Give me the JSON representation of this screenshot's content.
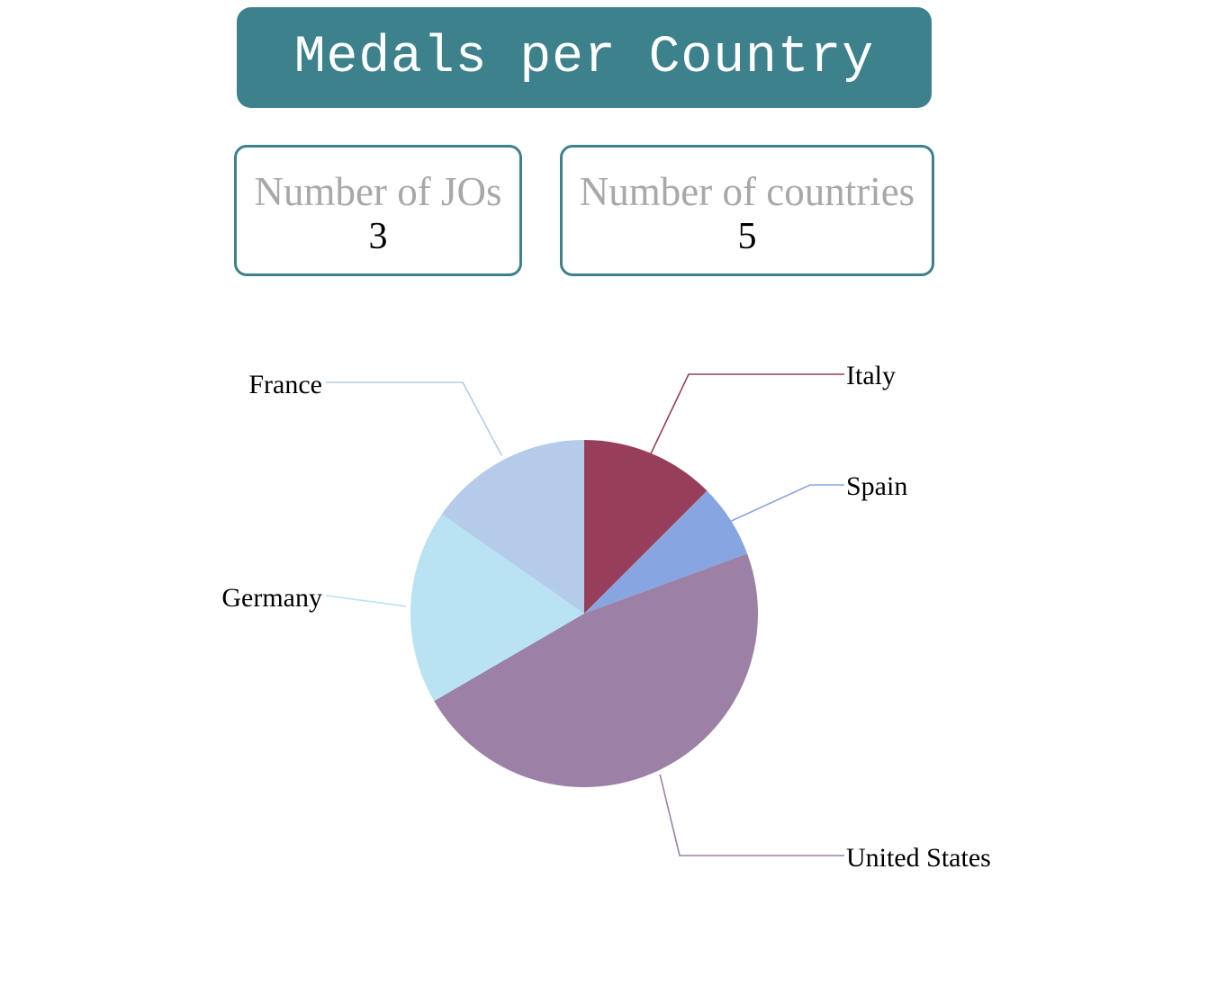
{
  "title": "Medals per Country",
  "stats": {
    "jos": {
      "label": "Number of JOs",
      "value": "3"
    },
    "countries": {
      "label": "Number of countries",
      "value": "5"
    }
  },
  "chart_data": {
    "type": "pie",
    "slices": [
      {
        "label": "Italy",
        "value": 12.5,
        "color": "#973f5a"
      },
      {
        "label": "Spain",
        "value": 6.9,
        "color": "#87a5e0"
      },
      {
        "label": "United States",
        "value": 47.2,
        "color": "#9c80a6"
      },
      {
        "label": "Germany",
        "value": 18.1,
        "color": "#b9e2f3"
      },
      {
        "label": "France",
        "value": 15.3,
        "color": "#b5cbea"
      }
    ]
  }
}
